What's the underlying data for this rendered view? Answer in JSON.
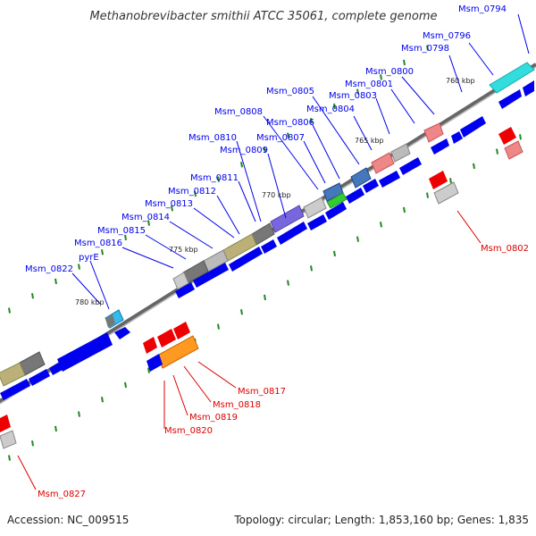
{
  "title": "Methanobrevibacter smithii ATCC 35061, complete genome",
  "accession": "Accession: NC_009515",
  "summary": "Topology: circular; Length: 1,853,160 bp; Genes: 1,835",
  "colors": {
    "forward_gene": "#0000ee",
    "reverse_gene": "#ee0000",
    "label_forward": "#0000ee",
    "label_reverse": "#dd0000",
    "backbone": "#888888",
    "minor_tick": "#228822"
  },
  "ticks": [
    "760 kbp",
    "765 kbp",
    "770 kbp",
    "775 kbp",
    "780 kbp"
  ],
  "labels_forward": [
    "Msm_0794",
    "Msm_0796",
    "Msm_0798",
    "Msm_0800",
    "Msm_0801",
    "Msm_0803",
    "Msm_0804",
    "Msm_0805",
    "Msm_0806",
    "Msm_0807",
    "Msm_0808",
    "Msm_0809",
    "Msm_0810",
    "Msm_0811",
    "Msm_0812",
    "Msm_0813",
    "Msm_0814",
    "Msm_0815",
    "Msm_0816",
    "pyrE",
    "Msm_0822"
  ],
  "labels_reverse": [
    "Msm_0802",
    "Msm_0817",
    "Msm_0818",
    "Msm_0819",
    "Msm_0820",
    "Msm_0827"
  ]
}
